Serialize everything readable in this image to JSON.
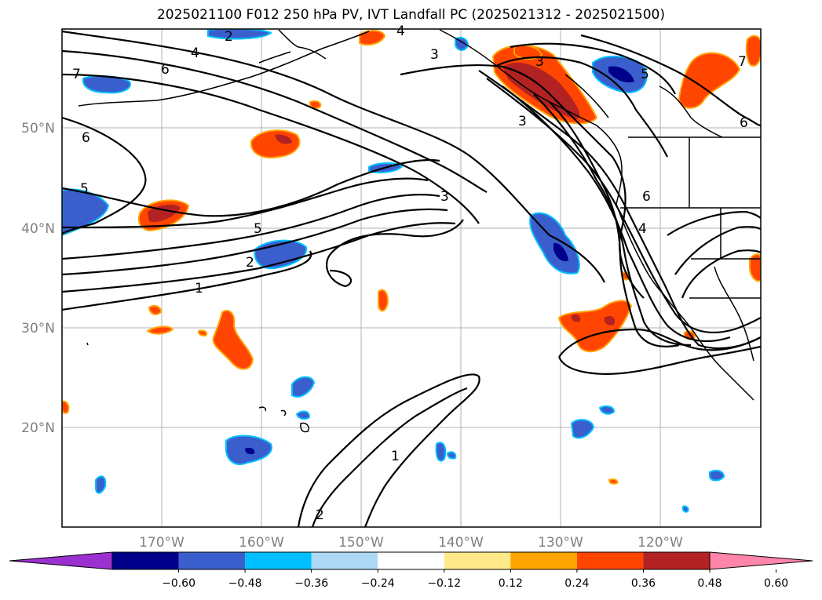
{
  "title": "2025021100 F012 250 hPa PV, IVT Landfall PC (2025021312 - 2025021500)",
  "map": {
    "lon_labels": [
      "170°W",
      "160°W",
      "150°W",
      "140°W",
      "130°W",
      "120°W"
    ],
    "lat_labels": [
      "50°N",
      "40°N",
      "30°N",
      "20°N"
    ],
    "contour_labels": [
      "7",
      "6",
      "4",
      "3",
      "6",
      "5",
      "5",
      "2",
      "1",
      "3",
      "3",
      "6",
      "4",
      "1",
      "2",
      "7",
      "6",
      "3",
      "2",
      "4",
      "5"
    ]
  },
  "colorbar": {
    "ticks": [
      "−0.60",
      "−0.48",
      "−0.36",
      "−0.24",
      "−0.12",
      "0.12",
      "0.24",
      "0.36",
      "0.48",
      "0.60"
    ],
    "colors": [
      "#9b30d0",
      "#00008b",
      "#3a5fcd",
      "#00bfff",
      "#add8f6",
      "#ffffff",
      "#ffe98a",
      "#ffa500",
      "#ff4500",
      "#b22222",
      "#ff85aa"
    ]
  }
}
